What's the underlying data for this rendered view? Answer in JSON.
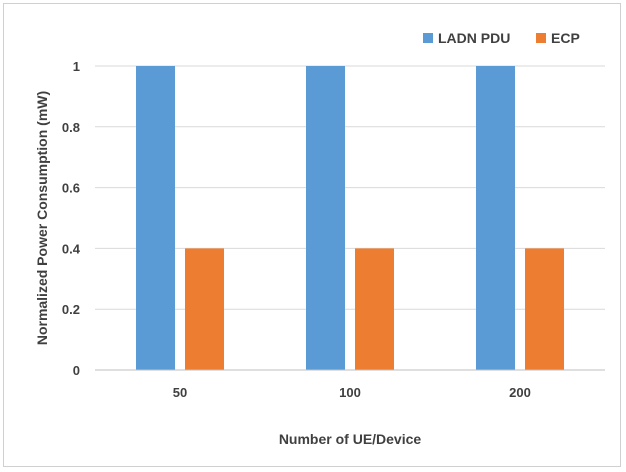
{
  "chart_data": {
    "type": "bar",
    "categories": [
      "50",
      "100",
      "200"
    ],
    "series": [
      {
        "name": "LADN PDU",
        "values": [
          1,
          1,
          1
        ],
        "color": "#5b9bd5"
      },
      {
        "name": "ECP",
        "values": [
          0.4,
          0.4,
          0.4
        ],
        "color": "#ed7d31"
      }
    ],
    "xlabel": "Number of UE/Device",
    "ylabel": "Normalized Power Consumption (mW)",
    "ylim": [
      0,
      1
    ],
    "yticks": [
      "0",
      "0.2",
      "0.4",
      "0.6",
      "0.8",
      "1"
    ],
    "grid": true,
    "legend_position": "top-right",
    "colors": {
      "grid": "#d9d9d9",
      "axis": "#bfbfbf",
      "text": "#404040"
    }
  }
}
